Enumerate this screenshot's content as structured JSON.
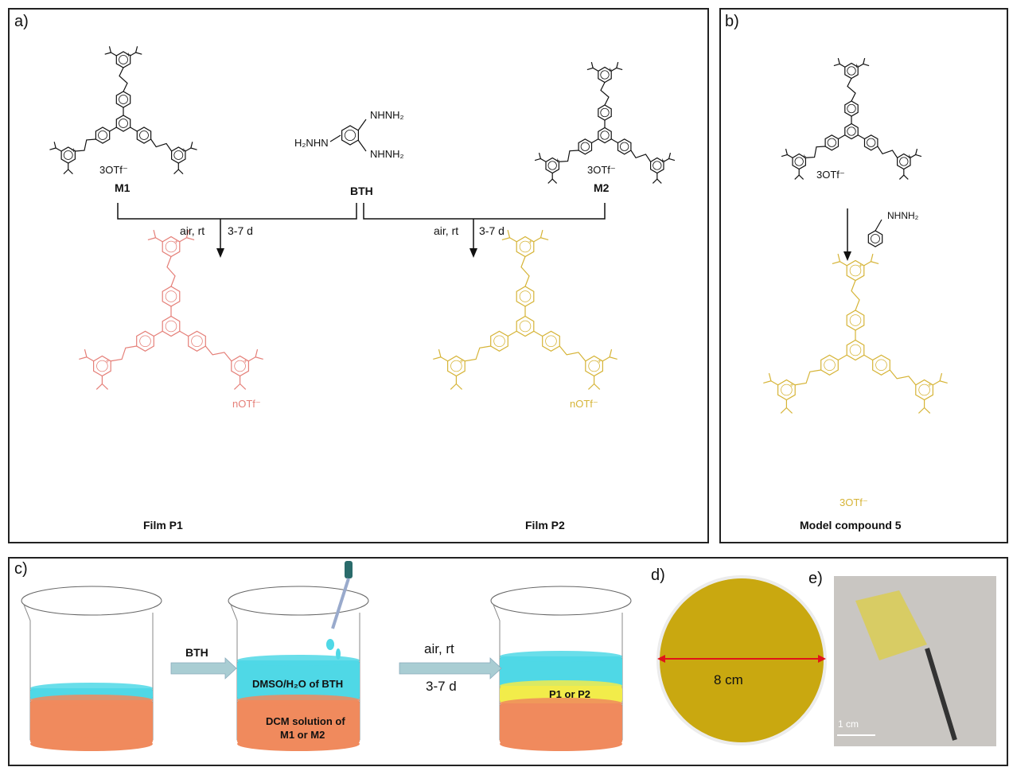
{
  "panels": {
    "a": {
      "label": "a)"
    },
    "b": {
      "label": "b)"
    },
    "c": {
      "label": "c)"
    },
    "d": {
      "label": "d)"
    },
    "e": {
      "label": "e)"
    }
  },
  "scheme_a": {
    "m1": {
      "name": "M1",
      "counterion": "3OTf⁻"
    },
    "bth": {
      "name": "BTH",
      "groups": [
        "NHNH₂",
        "NHNH₂",
        "H₂NHN"
      ]
    },
    "m2": {
      "name": "M2",
      "counterion": "3OTf⁻"
    },
    "conditions_left": {
      "reagent": "air, rt",
      "time": "3-7 d"
    },
    "conditions_right": {
      "reagent": "air, rt",
      "time": "3-7 d"
    },
    "p1": {
      "name": "Film P1",
      "counterion": "nOTf⁻",
      "color": "#e57f78"
    },
    "p2": {
      "name": "Film P2",
      "counterion": "nOTf⁻",
      "color": "#d6b437"
    }
  },
  "scheme_b": {
    "counterion_start": "3OTf⁻",
    "reagent": "NHNH₂",
    "product_counterion": "3OTf⁻",
    "product_name": "Model compound 5"
  },
  "process_c": {
    "step1_reagent": "BTH",
    "top_layer": "DMSO/H₂O of BTH",
    "bottom_layer_line1": "DCM solution of",
    "bottom_layer_line2": "M1 or M2",
    "step2_reagent": "air, rt",
    "step2_time": "3-7 d",
    "film_layer": "P1 or P2",
    "colors": {
      "aqueous": "#4fd8e6",
      "organic": "#f08a5d",
      "film": "#f2ec4a",
      "arrow": "#a9cdd3"
    }
  },
  "photo_d": {
    "dimension": "8 cm",
    "arrow_color": "#e0141a",
    "film_color": "#c9a810"
  },
  "photo_e": {
    "scale_bar": "1 cm"
  }
}
